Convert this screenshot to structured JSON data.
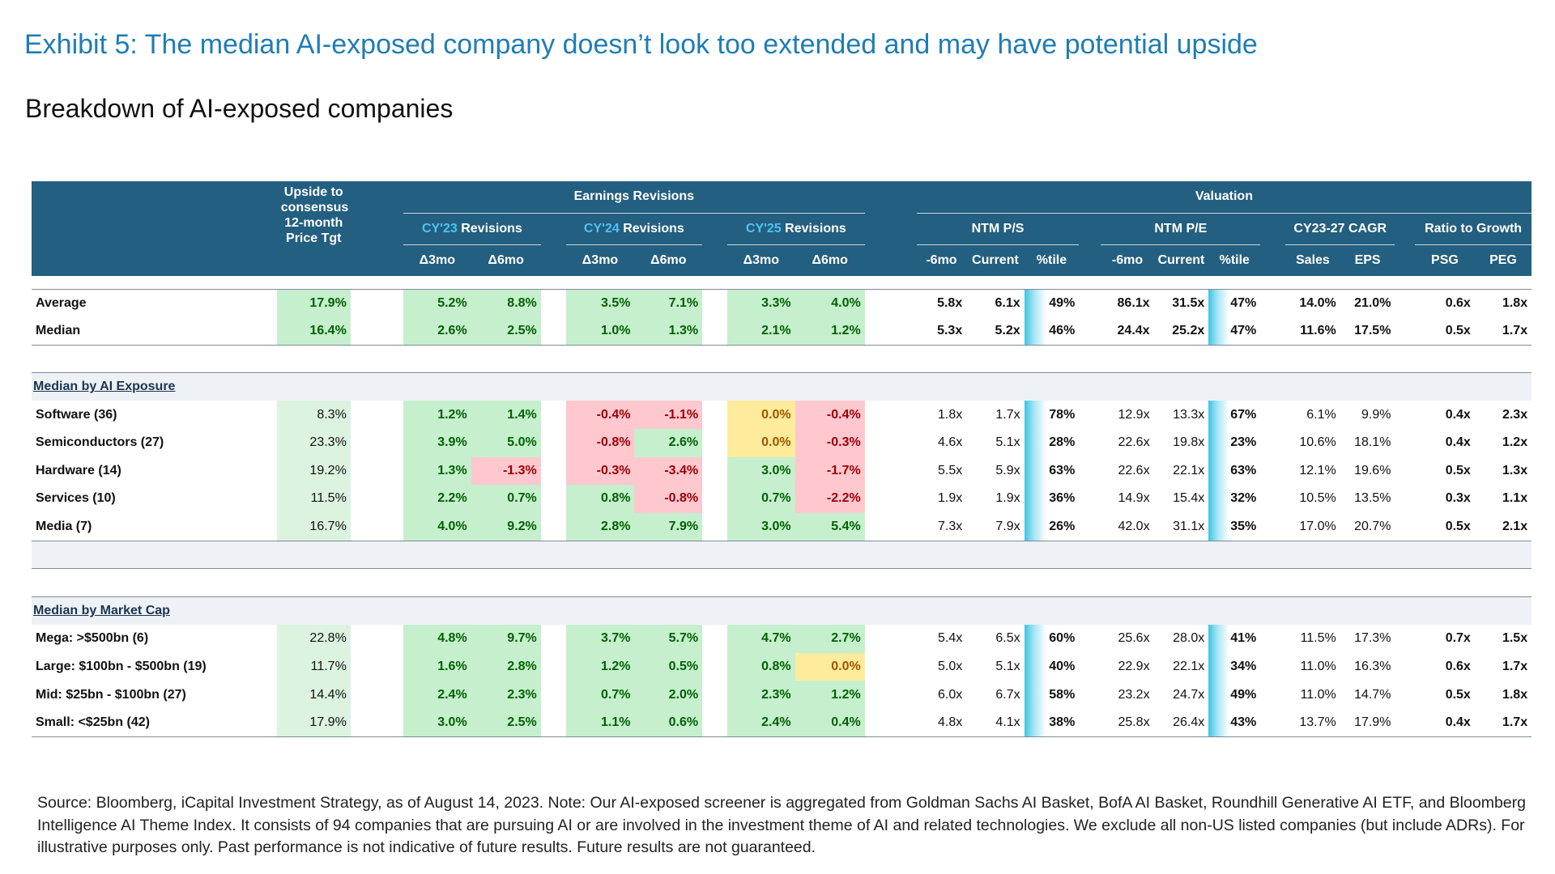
{
  "header": {
    "title": "Exhibit 5: The median AI-exposed company doesn’t look too extended and may have potential upside",
    "subtitle": "Breakdown of AI-exposed companies"
  },
  "table": {
    "upside_header": [
      "Upside to",
      "consensus",
      "12-month",
      "Price Tgt"
    ],
    "earnings": "Earnings Revisions",
    "valuation": "Valuation",
    "revision_groups": [
      {
        "year": "CY'23",
        "label": "Revisions"
      },
      {
        "year": "CY'24",
        "label": "Revisions"
      },
      {
        "year": "CY'25",
        "label": "Revisions"
      }
    ],
    "valuation_groups": [
      "NTM P/S",
      "NTM P/E",
      "CY23-27 CAGR",
      "Ratio to Growth"
    ],
    "columns": [
      "Δ3mo",
      "Δ6mo",
      "Δ3mo",
      "Δ6mo",
      "Δ3mo",
      "Δ6mo",
      "-6mo",
      "Current",
      "%tile",
      "-6mo",
      "Current",
      "%tile",
      "Sales",
      "EPS",
      "PSG",
      "PEG"
    ],
    "sections": [
      {
        "title": null,
        "rows": [
          {
            "label": "Average",
            "values": [
              "17.9%",
              "5.2%",
              "8.8%",
              "3.5%",
              "7.1%",
              "3.3%",
              "4.0%",
              "5.8x",
              "6.1x",
              "49%",
              "86.1x",
              "31.5x",
              "47%",
              "14.0%",
              "21.0%",
              "0.6x",
              "1.8x"
            ]
          },
          {
            "label": "Median",
            "values": [
              "16.4%",
              "2.6%",
              "2.5%",
              "1.0%",
              "1.3%",
              "2.1%",
              "1.2%",
              "5.3x",
              "5.2x",
              "46%",
              "24.4x",
              "25.2x",
              "47%",
              "11.6%",
              "17.5%",
              "0.5x",
              "1.7x"
            ]
          }
        ]
      },
      {
        "title": "Median by AI Exposure",
        "rows": [
          {
            "label": "Software (36)",
            "values": [
              "8.3%",
              "1.2%",
              "1.4%",
              "-0.4%",
              "-1.1%",
              "0.0%",
              "-0.4%",
              "1.8x",
              "1.7x",
              "78%",
              "12.9x",
              "13.3x",
              "67%",
              "6.1%",
              "9.9%",
              "0.4x",
              "2.3x"
            ]
          },
          {
            "label": "Semiconductors (27)",
            "values": [
              "23.3%",
              "3.9%",
              "5.0%",
              "-0.8%",
              "2.6%",
              "0.0%",
              "-0.3%",
              "4.6x",
              "5.1x",
              "28%",
              "22.6x",
              "19.8x",
              "23%",
              "10.6%",
              "18.1%",
              "0.4x",
              "1.2x"
            ]
          },
          {
            "label": "Hardware (14)",
            "values": [
              "19.2%",
              "1.3%",
              "-1.3%",
              "-0.3%",
              "-3.4%",
              "3.0%",
              "-1.7%",
              "5.5x",
              "5.9x",
              "63%",
              "22.6x",
              "22.1x",
              "63%",
              "12.1%",
              "19.6%",
              "0.5x",
              "1.3x"
            ]
          },
          {
            "label": "Services (10)",
            "values": [
              "11.5%",
              "2.2%",
              "0.7%",
              "0.8%",
              "-0.8%",
              "0.7%",
              "-2.2%",
              "1.9x",
              "1.9x",
              "36%",
              "14.9x",
              "15.4x",
              "32%",
              "10.5%",
              "13.5%",
              "0.3x",
              "1.1x"
            ]
          },
          {
            "label": "Media (7)",
            "values": [
              "16.7%",
              "4.0%",
              "9.2%",
              "2.8%",
              "7.9%",
              "3.0%",
              "5.4%",
              "7.3x",
              "7.9x",
              "26%",
              "42.0x",
              "31.1x",
              "35%",
              "17.0%",
              "20.7%",
              "0.5x",
              "2.1x"
            ]
          }
        ]
      },
      {
        "title": "Median by Market Cap",
        "rows": [
          {
            "label": "Mega: >$500bn (6)",
            "values": [
              "22.8%",
              "4.8%",
              "9.7%",
              "3.7%",
              "5.7%",
              "4.7%",
              "2.7%",
              "5.4x",
              "6.5x",
              "60%",
              "25.6x",
              "28.0x",
              "41%",
              "11.5%",
              "17.3%",
              "0.7x",
              "1.5x"
            ]
          },
          {
            "label": "Large: $100bn - $500bn (19)",
            "values": [
              "11.7%",
              "1.6%",
              "2.8%",
              "1.2%",
              "0.5%",
              "0.8%",
              "0.0%",
              "5.0x",
              "5.1x",
              "40%",
              "22.9x",
              "22.1x",
              "34%",
              "11.0%",
              "16.3%",
              "0.6x",
              "1.7x"
            ]
          },
          {
            "label": "Mid: $25bn - $100bn (27)",
            "values": [
              "14.4%",
              "2.4%",
              "2.3%",
              "0.7%",
              "2.0%",
              "2.3%",
              "1.2%",
              "6.0x",
              "6.7x",
              "58%",
              "23.2x",
              "24.7x",
              "49%",
              "11.0%",
              "14.7%",
              "0.5x",
              "1.8x"
            ]
          },
          {
            "label": "Small: <$25bn (42)",
            "values": [
              "17.9%",
              "3.0%",
              "2.5%",
              "1.1%",
              "0.6%",
              "2.4%",
              "0.4%",
              "4.8x",
              "4.1x",
              "38%",
              "25.8x",
              "26.4x",
              "43%",
              "13.7%",
              "17.9%",
              "0.4x",
              "1.7x"
            ]
          }
        ]
      }
    ]
  },
  "note": "Source: Bloomberg, iCapital Investment Strategy, as of August 14, 2023. Note: Our AI-exposed screener is aggregated from Goldman Sachs AI Basket, BofA AI Basket, Roundhill Generative AI ETF, and Bloomberg Intelligence AI Theme Index. It consists of 94 companies that are pursuing AI or are involved in the investment theme of AI and related technologies. We exclude all non-US listed companies (but include ADRs). For illustrative purposes only. Past performance is not indicative of future results. Future results are not guaranteed."
}
